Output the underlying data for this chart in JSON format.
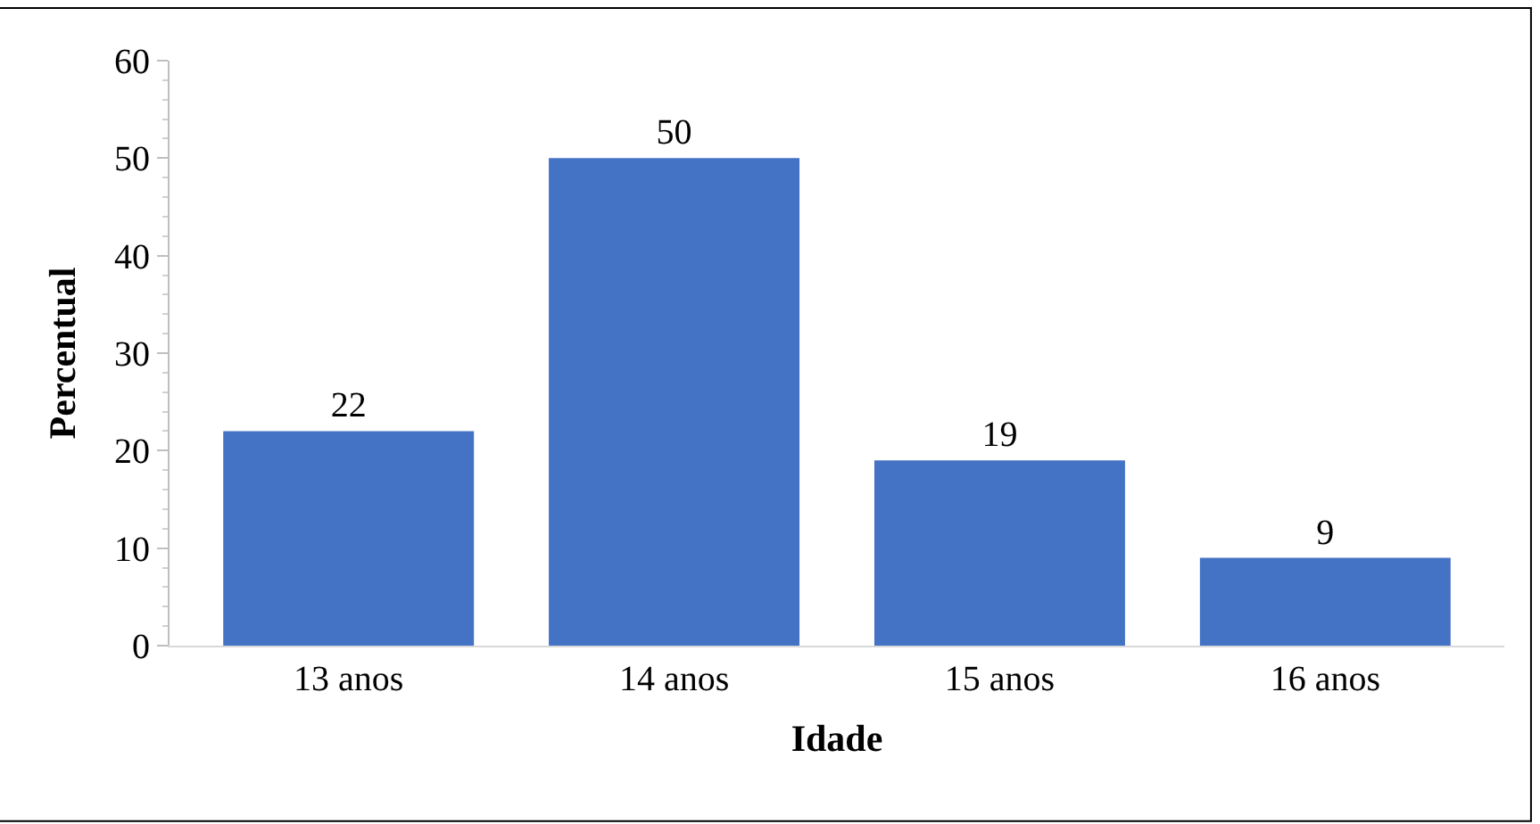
{
  "chart_data": {
    "type": "bar",
    "xlabel": "Idade",
    "ylabel": "Percentual",
    "categories": [
      "13 anos",
      "14 anos",
      "15 anos",
      "16 anos"
    ],
    "values": [
      22,
      50,
      19,
      9
    ],
    "color": "#4472c4",
    "ylim": [
      0,
      60
    ],
    "yticks": [
      0,
      10,
      20,
      30,
      40,
      50,
      60
    ],
    "data_labels": true,
    "legend": false
  }
}
